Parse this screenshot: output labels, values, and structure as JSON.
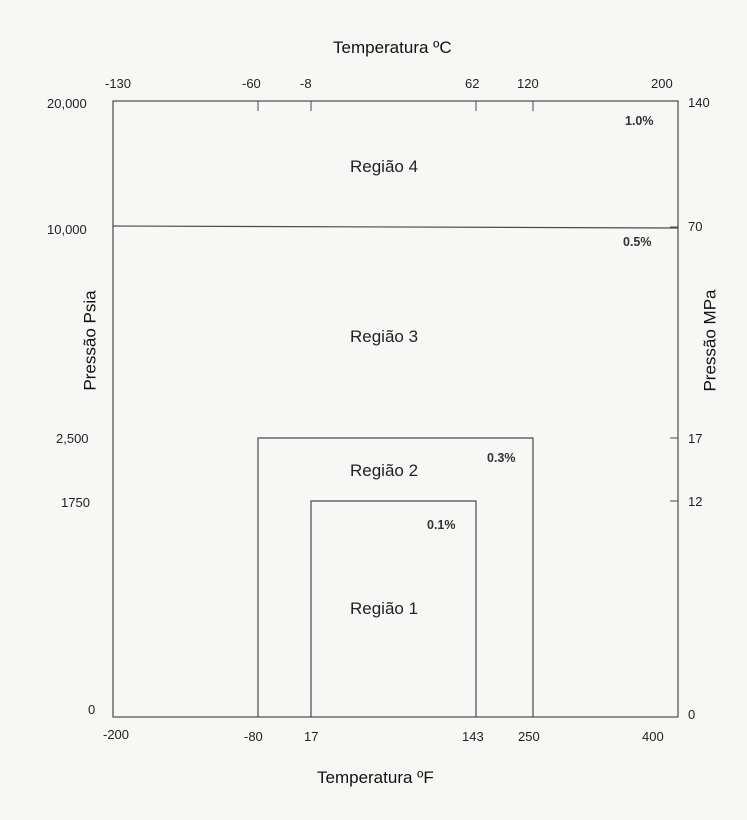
{
  "axes": {
    "top_title": "Temperatura ºC",
    "bottom_title": "Temperatura ºF",
    "left_title": "Pressão Psia",
    "right_title": "Pressão MPa",
    "top_ticks": [
      "-130",
      "-60",
      "-8",
      "62",
      "120",
      "200"
    ],
    "bottom_ticks": [
      "-200",
      "-80",
      "17",
      "143",
      "250",
      "400"
    ],
    "left_ticks": [
      "20,000",
      "10,000",
      "2,500",
      "1750",
      "0"
    ],
    "right_ticks": [
      "140",
      "70",
      "17",
      "12",
      "0"
    ]
  },
  "regions": [
    {
      "label": "Região 4",
      "accuracy": "1.0%"
    },
    {
      "label": "Região 3",
      "accuracy": "0.5%"
    },
    {
      "label": "Região 2",
      "accuracy": "0.3%"
    },
    {
      "label": "Região 1",
      "accuracy": "0.1%"
    }
  ],
  "colors": {
    "line": "#4a4a4a",
    "background": "#f7f7f5"
  }
}
